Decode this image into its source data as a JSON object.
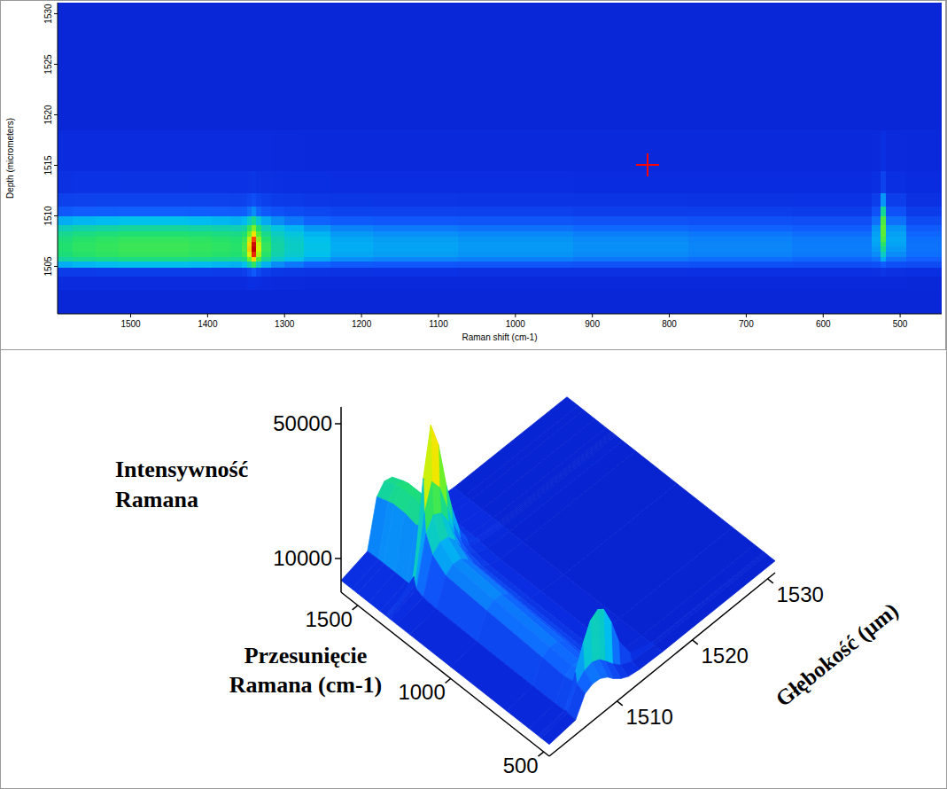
{
  "chart_data": [
    {
      "type": "heatmap",
      "x_label": "Raman shift (cm-1)",
      "y_label": "Depth (micrometers)",
      "x": [
        1590,
        1560,
        1530,
        1500,
        1470,
        1440,
        1410,
        1380,
        1360,
        1352,
        1346,
        1340,
        1334,
        1326,
        1310,
        1290,
        1260,
        1220,
        1150,
        1000,
        850,
        700,
        580,
        545,
        530,
        522,
        514,
        470
      ],
      "y": [
        1502,
        1503.5,
        1504.5,
        1505.25,
        1505.75,
        1506.25,
        1506.75,
        1507.25,
        1507.75,
        1508.25,
        1508.75,
        1509.5,
        1510.5,
        1511.5,
        1513,
        1516,
        1521,
        1527
      ],
      "values": [
        [
          3500,
          3500,
          3500,
          3500,
          3500,
          3500,
          3500,
          3500,
          3500,
          3500,
          3500,
          3500,
          3500,
          3500,
          3500,
          3500,
          3500,
          3500,
          3500,
          3500,
          3500,
          3500,
          3500,
          3500,
          3500,
          3500,
          3500,
          3500
        ],
        [
          3900,
          3900,
          3900,
          3900,
          3900,
          3900,
          3900,
          3900,
          3900,
          3900,
          4200,
          4400,
          4100,
          3900,
          3800,
          3800,
          3700,
          3700,
          3700,
          3700,
          3700,
          3700,
          3700,
          3700,
          3700,
          3700,
          3700,
          3600
        ],
        [
          5800,
          5900,
          6000,
          6000,
          6000,
          6000,
          6000,
          5900,
          5800,
          6100,
          7500,
          9100,
          7100,
          6000,
          5400,
          5200,
          4900,
          4800,
          4700,
          4600,
          4600,
          4500,
          4500,
          4500,
          4600,
          5000,
          4600,
          4400
        ],
        [
          14000,
          14500,
          14800,
          15100,
          15100,
          15100,
          14800,
          14500,
          14200,
          15000,
          18900,
          23500,
          17600,
          14200,
          12300,
          11200,
          10100,
          9300,
          9000,
          8700,
          8500,
          8200,
          7900,
          7900,
          8200,
          9700,
          8200,
          7600
        ],
        [
          19700,
          20500,
          20900,
          21400,
          21400,
          21400,
          20900,
          20500,
          20100,
          21500,
          28100,
          36000,
          26000,
          20200,
          17100,
          15400,
          13700,
          12400,
          12000,
          11600,
          11200,
          10700,
          10300,
          10300,
          10900,
          13900,
          10900,
          9900
        ],
        [
          21900,
          22900,
          23400,
          23900,
          23900,
          23900,
          23400,
          22900,
          22400,
          24500,
          33800,
          45200,
          31200,
          23000,
          19000,
          17100,
          15100,
          13700,
          13200,
          12700,
          12200,
          11700,
          11300,
          11300,
          12300,
          17600,
          12300,
          10800
        ],
        [
          22500,
          23500,
          24000,
          24500,
          24500,
          24500,
          24000,
          23500,
          23000,
          25500,
          36500,
          50000,
          33500,
          24000,
          19500,
          17500,
          15500,
          14000,
          13500,
          13000,
          12500,
          12000,
          11500,
          11500,
          13000,
          20500,
          13000,
          11000
        ],
        [
          22500,
          23500,
          24000,
          24500,
          24500,
          24500,
          24000,
          23500,
          23000,
          25400,
          35800,
          48600,
          32900,
          23900,
          19500,
          17500,
          15500,
          14000,
          13500,
          13000,
          12500,
          12000,
          11500,
          11500,
          13500,
          23200,
          13500,
          11000
        ],
        [
          21900,
          22900,
          23400,
          23900,
          23900,
          23900,
          23400,
          22900,
          22400,
          24200,
          32400,
          42400,
          30000,
          22700,
          19000,
          17100,
          15100,
          13700,
          13200,
          12700,
          12200,
          11700,
          11300,
          11300,
          13700,
          25700,
          13700,
          10800
        ],
        [
          20600,
          21500,
          22000,
          22400,
          22400,
          22400,
          22000,
          21500,
          21100,
          22300,
          28300,
          35600,
          26300,
          20900,
          17900,
          16100,
          14300,
          13000,
          12500,
          12100,
          11600,
          11200,
          10700,
          10700,
          13400,
          26900,
          13400,
          10300
        ],
        [
          18300,
          19100,
          19500,
          19900,
          19900,
          19900,
          19500,
          19100,
          18700,
          19500,
          23900,
          29100,
          22300,
          18400,
          16000,
          14400,
          12900,
          11700,
          11300,
          10900,
          10500,
          10100,
          9700,
          9700,
          12700,
          27200,
          12700,
          9400
        ],
        [
          14000,
          14500,
          14800,
          15100,
          15100,
          15100,
          14800,
          14500,
          14200,
          14700,
          17500,
          20700,
          16400,
          13900,
          12300,
          11200,
          10100,
          9300,
          9000,
          8700,
          8500,
          8200,
          7900,
          7900,
          10900,
          25900,
          10900,
          7600
        ],
        [
          9200,
          9500,
          9700,
          9800,
          9800,
          9800,
          9700,
          9500,
          9400,
          9600,
          10900,
          12400,
          10300,
          9100,
          8300,
          7700,
          7100,
          6700,
          6500,
          6400,
          6200,
          6100,
          5900,
          5900,
          8300,
          20300,
          8300,
          5800
        ],
        [
          6400,
          6500,
          6600,
          6700,
          6700,
          6700,
          6600,
          6500,
          6400,
          6500,
          7200,
          8000,
          6900,
          6300,
          5900,
          5600,
          5300,
          5100,
          5000,
          4900,
          4900,
          4800,
          4700,
          4700,
          6100,
          12800,
          6100,
          4600
        ],
        [
          4600,
          4700,
          4700,
          4800,
          4800,
          4800,
          4700,
          4700,
          4700,
          4700,
          4900,
          5200,
          4800,
          4600,
          4500,
          4300,
          4200,
          4100,
          4100,
          4100,
          4000,
          4000,
          4000,
          4000,
          4400,
          6700,
          4400,
          4000
        ],
        [
          3900,
          3900,
          3900,
          3900,
          3900,
          3900,
          3900,
          3900,
          3900,
          3900,
          3900,
          3900,
          3900,
          3900,
          3800,
          3800,
          3700,
          3700,
          3700,
          3700,
          3700,
          3700,
          3700,
          3700,
          3800,
          4200,
          3800,
          3700
        ],
        [
          3500,
          3500,
          3500,
          3500,
          3500,
          3500,
          3500,
          3500,
          3500,
          3500,
          3500,
          3500,
          3500,
          3500,
          3500,
          3500,
          3500,
          3500,
          3500,
          3500,
          3500,
          3500,
          3500,
          3500,
          3500,
          3500,
          3500,
          3500
        ],
        [
          3500,
          3500,
          3500,
          3500,
          3500,
          3500,
          3500,
          3500,
          3500,
          3500,
          3500,
          3500,
          3500,
          3500,
          3500,
          3500,
          3500,
          3500,
          3500,
          3500,
          3500,
          3500,
          3500,
          3500,
          3500,
          3500,
          3500,
          3500
        ]
      ],
      "xlim": [
        1595,
        446
      ],
      "ylim": [
        1500.3,
        1531.1
      ],
      "xticks": [
        1500,
        1400,
        1300,
        1200,
        1100,
        1000,
        900,
        800,
        700,
        600,
        500
      ],
      "yticks": [
        1505,
        1510,
        1515,
        1520,
        1525,
        1530
      ],
      "zlim": [
        0,
        50000
      ],
      "cursor": {
        "x": 828,
        "y": 1515
      }
    },
    {
      "type": "surface",
      "x_label": "Przesunięcie Ramana (cm-1)",
      "y_label": "Głębokość (µm)",
      "z_label": "Intensywność Ramana",
      "x": [
        1590,
        1530,
        1500,
        1440,
        1380,
        1352,
        1346,
        1340,
        1334,
        1326,
        1290,
        1220,
        1000,
        700,
        580,
        530,
        522,
        514,
        470
      ],
      "y": [
        1501,
        1504.5,
        1505.75,
        1506.75,
        1507.75,
        1508.75,
        1509.5,
        1510.5,
        1511.5,
        1513,
        1516,
        1531
      ],
      "values": [
        [
          3500,
          3500,
          3500,
          3500,
          3500,
          3500,
          3500,
          3500,
          3500,
          3500,
          3500,
          3500,
          3500,
          3500,
          3500,
          3500,
          3500,
          3500,
          3500
        ],
        [
          5800,
          6000,
          6000,
          6000,
          5900,
          6100,
          7500,
          9100,
          7100,
          6000,
          5200,
          4800,
          4600,
          4500,
          4500,
          4600,
          5000,
          4600,
          4400
        ],
        [
          19700,
          20900,
          21400,
          21400,
          20500,
          21500,
          28100,
          36000,
          26000,
          20200,
          15400,
          12400,
          11600,
          10700,
          10300,
          10900,
          13900,
          10900,
          9900
        ],
        [
          22500,
          24000,
          24500,
          24500,
          23500,
          25500,
          36500,
          50000,
          33500,
          24000,
          17500,
          14000,
          13000,
          12000,
          11500,
          13000,
          20500,
          13000,
          11000
        ],
        [
          21900,
          23400,
          23900,
          23900,
          22900,
          24200,
          32400,
          42400,
          30000,
          22700,
          17100,
          13700,
          12700,
          11700,
          11300,
          13700,
          25700,
          13700,
          10800
        ],
        [
          18300,
          19500,
          19900,
          19900,
          19100,
          19500,
          23900,
          29100,
          22300,
          18400,
          14400,
          11700,
          10900,
          10100,
          9700,
          12700,
          27200,
          12700,
          9400
        ],
        [
          14000,
          14800,
          15100,
          15100,
          14500,
          14700,
          17500,
          20700,
          16400,
          13900,
          11200,
          9300,
          8700,
          8200,
          7900,
          10900,
          25900,
          10900,
          7600
        ],
        [
          9200,
          9700,
          9800,
          9800,
          9500,
          9600,
          10900,
          12400,
          10300,
          9100,
          7700,
          6700,
          6400,
          6100,
          5900,
          8300,
          20300,
          8300,
          5800
        ],
        [
          6400,
          6600,
          6700,
          6700,
          6500,
          6500,
          7200,
          8000,
          6900,
          6300,
          5600,
          5100,
          4900,
          4800,
          4700,
          6100,
          12800,
          6100,
          4600
        ],
        [
          4600,
          4700,
          4800,
          4800,
          4700,
          4700,
          4900,
          5200,
          4800,
          4600,
          4300,
          4100,
          4100,
          4000,
          4000,
          4400,
          6700,
          4400,
          4000
        ],
        [
          3900,
          3900,
          3900,
          3900,
          3900,
          3900,
          3900,
          3900,
          3900,
          3900,
          3800,
          3700,
          3700,
          3700,
          3700,
          3800,
          4200,
          3800,
          3700
        ],
        [
          3500,
          3500,
          3500,
          3500,
          3500,
          3500,
          3500,
          3500,
          3500,
          3500,
          3500,
          3500,
          3500,
          3500,
          3500,
          3500,
          3500,
          3500,
          3500
        ]
      ],
      "xlim": [
        1590,
        470
      ],
      "ylim": [
        1501,
        1531
      ],
      "zlim": [
        0,
        55000
      ],
      "xticks": [
        1500,
        1000,
        500
      ],
      "yticks": [
        1510,
        1520,
        1530
      ],
      "zticks": [
        10000,
        50000
      ]
    }
  ]
}
